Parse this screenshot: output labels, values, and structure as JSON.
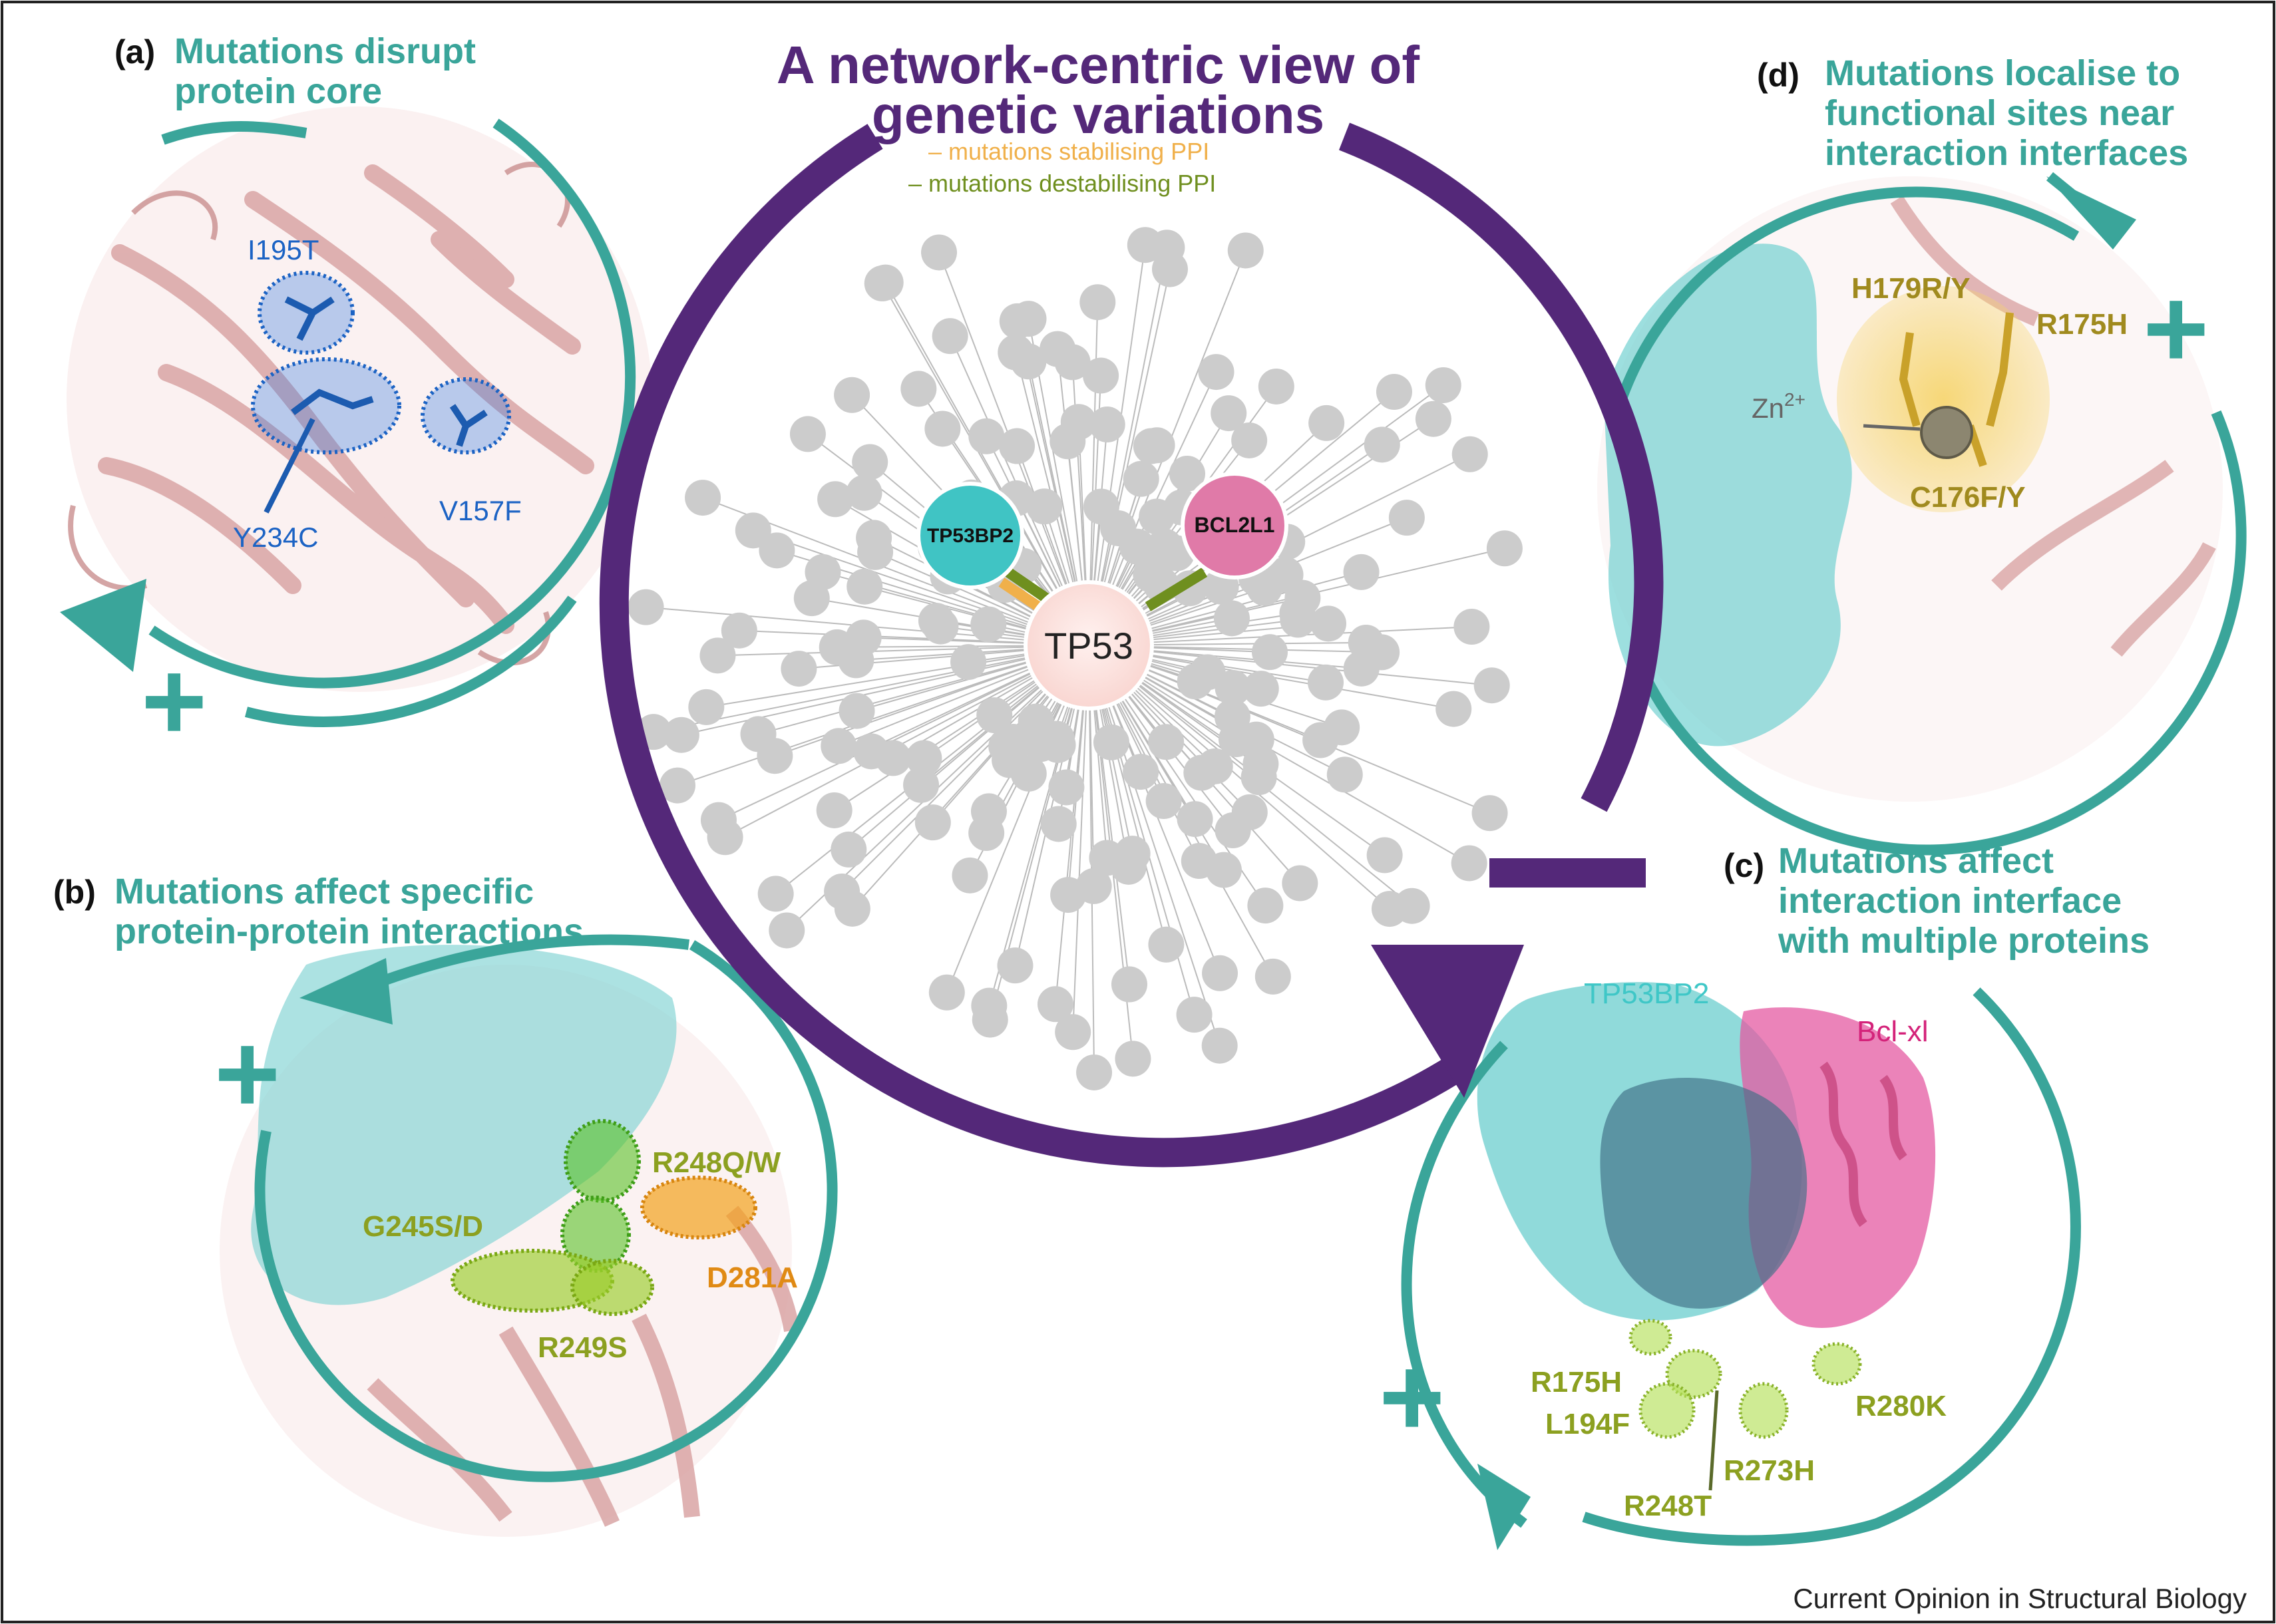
{
  "title": {
    "line1": "A network-centric view of",
    "line2": "genetic variations"
  },
  "legend": {
    "stabilising": "– mutations stabilising PPI",
    "destabilising": "– mutations destabilising PPI",
    "stabilising_color": "#f0b04a",
    "destabilising_color": "#6f8f1f"
  },
  "network": {
    "hub": "TP53",
    "partner_left": "TP53BP2",
    "partner_right": "BCL2L1",
    "hub_color": "#fde0dd",
    "partner_left_color": "#40c4c4",
    "partner_right_color": "#e07aa8",
    "node_color": "#cccccc"
  },
  "panel_a": {
    "letter": "(a)",
    "title_line1": "Mutations disrupt",
    "title_line2": "protein core",
    "mutations": [
      "I195T",
      "Y234C",
      "V157F"
    ],
    "sign": "+"
  },
  "panel_b": {
    "letter": "(b)",
    "title_line1": "Mutations affect specific",
    "title_line2": "protein-protein interactions",
    "mutations_green": [
      "G245S/D",
      "R249S"
    ],
    "mutations_orange": [
      "R248Q/W",
      "D281A"
    ],
    "sign": "+"
  },
  "panel_c": {
    "letter": "(c)",
    "title_line1": "Mutations affect",
    "title_line2": "interaction interface",
    "title_line3": "with multiple proteins",
    "protein_left": "TP53BP2",
    "protein_right": "Bcl-xl",
    "mutations": [
      "R175H",
      "L194F",
      "R248T",
      "R273H",
      "R280K"
    ],
    "sign": "+"
  },
  "panel_d": {
    "letter": "(d)",
    "title_line1": "Mutations localise to",
    "title_line2": "functional sites near",
    "title_line3": "interaction interfaces",
    "mutations": [
      "H179R/Y",
      "R175H",
      "C176F/Y"
    ],
    "ion": "Zn",
    "ion_charge": "2+",
    "sign": "+"
  },
  "center_sign": "−",
  "colors": {
    "teal": "#3aa59a",
    "purple": "#542879",
    "blue": "#1c63c4",
    "olive": "#8ca020",
    "orange": "#e08a14"
  },
  "footer": "Current Opinion in Structural Biology"
}
